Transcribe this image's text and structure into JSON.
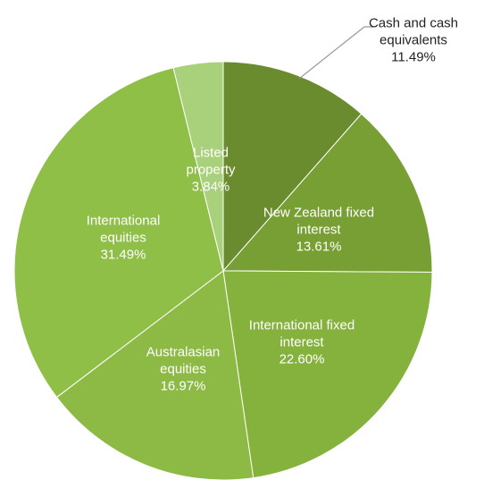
{
  "chart_data": {
    "type": "pie",
    "categories": [
      "Cash and cash equivalents",
      "New Zealand fixed interest",
      "International fixed interest",
      "Australasian equities",
      "International equities",
      "Listed property"
    ],
    "values": [
      11.49,
      13.61,
      22.6,
      16.97,
      31.49,
      3.84
    ],
    "value_labels": [
      "11.49%",
      "13.61%",
      "22.60%",
      "16.97%",
      "31.49%",
      "3.84%"
    ],
    "colors": [
      "#6b8c2e",
      "#779f33",
      "#84b23c",
      "#8cba45",
      "#8fbf47",
      "#a9d07a"
    ]
  }
}
